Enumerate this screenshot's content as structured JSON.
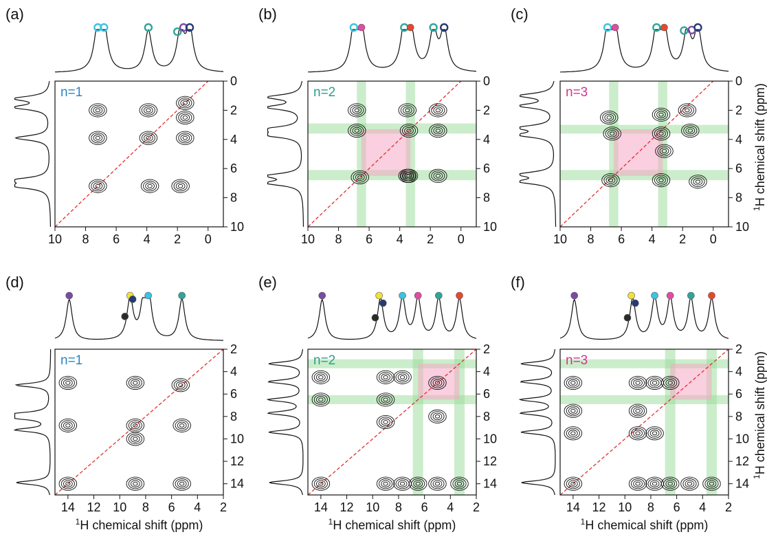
{
  "figure": {
    "x_axis_title_sup": "1",
    "x_axis_title": "H chemical shift (ppm)",
    "y_axis_title_sup": "1",
    "y_axis_title": "H chemical shift (ppm)"
  },
  "chart_data": [
    {
      "type": "contour",
      "panel": "(a)",
      "n_label": "n=1",
      "n_label_color": "#2a86c8",
      "x_range": [
        10,
        -1
      ],
      "y_range": [
        0,
        10
      ],
      "x_ticks": [
        "10",
        "8",
        "6",
        "4",
        "2",
        "0"
      ],
      "x_tick_values": [
        10,
        8,
        6,
        4,
        2,
        0
      ],
      "y_ticks": [
        "0",
        "2",
        "4",
        "6",
        "8",
        "10"
      ],
      "y_tick_values": [
        0,
        2,
        4,
        6,
        8,
        10
      ],
      "show_x_title": false,
      "show_y_title": false,
      "peaks": [
        7.2,
        6.8,
        3.9,
        1.8,
        1.2
      ],
      "markers": [
        {
          "x": 7.2,
          "color": "cyan",
          "type": "ring"
        },
        {
          "x": 6.8,
          "color": "cyan",
          "type": "ring"
        },
        {
          "x": 3.9,
          "color": "teal",
          "type": "ring"
        },
        {
          "x": 2.0,
          "color": "teal",
          "type": "ring"
        },
        {
          "x": 1.6,
          "color": "purple",
          "type": "ring"
        },
        {
          "x": 1.2,
          "color": "navy",
          "type": "ring"
        }
      ],
      "green_bands": [],
      "pink_box": null,
      "cross_peaks": [
        [
          7.2,
          2
        ],
        [
          3.9,
          3.9
        ],
        [
          7.2,
          7.2
        ],
        [
          3.8,
          7.2
        ],
        [
          1.8,
          7.2
        ],
        [
          1.5,
          1.5
        ],
        [
          1.5,
          3.9
        ],
        [
          7.2,
          3.9
        ],
        [
          1.5,
          2.5
        ],
        [
          3.9,
          2
        ]
      ]
    },
    {
      "type": "contour",
      "panel": "(b)",
      "n_label": "n=2",
      "n_label_color": "#2b9c8c",
      "x_range": [
        10,
        -1
      ],
      "y_range": [
        0,
        10
      ],
      "x_ticks": [
        "10",
        "8",
        "6",
        "4",
        "2",
        "0"
      ],
      "x_tick_values": [
        10,
        8,
        6,
        4,
        2,
        0
      ],
      "y_ticks": [
        "0",
        "2",
        "4",
        "6",
        "8",
        "10"
      ],
      "y_tick_values": [
        0,
        2,
        4,
        6,
        8,
        10
      ],
      "show_x_title": false,
      "show_y_title": false,
      "peaks": [
        7.0,
        6.5,
        3.7,
        3.3,
        1.8,
        1.1
      ],
      "markers": [
        {
          "x": 7.0,
          "color": "cyan",
          "type": "ring"
        },
        {
          "x": 6.5,
          "color": "pink",
          "type": "dot"
        },
        {
          "x": 3.7,
          "color": "teal",
          "type": "ring"
        },
        {
          "x": 3.3,
          "color": "red",
          "type": "dot"
        },
        {
          "x": 1.8,
          "color": "teal",
          "type": "ring"
        },
        {
          "x": 1.1,
          "color": "navy",
          "type": "ring"
        }
      ],
      "green_bands": [
        {
          "axis": "v",
          "from": 6.8,
          "to": 6.2
        },
        {
          "axis": "v",
          "from": 3.6,
          "to": 3.0
        },
        {
          "axis": "h",
          "from": 2.9,
          "to": 3.6
        },
        {
          "axis": "h",
          "from": 6.1,
          "to": 6.8
        }
      ],
      "pink_box": {
        "x1": 6.5,
        "x2": 3.3,
        "y1": 3.3,
        "y2": 6.5
      },
      "cross_peaks": [
        [
          6.8,
          2
        ],
        [
          3.5,
          2
        ],
        [
          1.5,
          2
        ],
        [
          6.8,
          3.4
        ],
        [
          3.4,
          3.4
        ],
        [
          1.5,
          3.4
        ],
        [
          6.6,
          6.6
        ],
        [
          3.4,
          6.5
        ],
        [
          1.5,
          6.5
        ],
        [
          3.5,
          6.5
        ]
      ]
    },
    {
      "type": "contour",
      "panel": "(c)",
      "n_label": "n=3",
      "n_label_color": "#d4338a",
      "x_range": [
        10,
        -1
      ],
      "y_range": [
        0,
        10
      ],
      "x_ticks": [
        "10",
        "8",
        "6",
        "4",
        "2",
        "0"
      ],
      "x_tick_values": [
        10,
        8,
        6,
        4,
        2,
        0
      ],
      "y_ticks": [
        "0",
        "2",
        "4",
        "6",
        "8",
        "10"
      ],
      "y_tick_values": [
        0,
        2,
        4,
        6,
        8,
        10
      ],
      "show_x_title": false,
      "show_y_title": true,
      "peaks": [
        6.9,
        6.4,
        3.7,
        3.2,
        1.7,
        1.0
      ],
      "markers": [
        {
          "x": 6.9,
          "color": "cyan",
          "type": "ring"
        },
        {
          "x": 6.4,
          "color": "pink",
          "type": "dot"
        },
        {
          "x": 3.7,
          "color": "teal",
          "type": "ring"
        },
        {
          "x": 3.2,
          "color": "red",
          "type": "dot"
        },
        {
          "x": 1.9,
          "color": "teal",
          "type": "ring"
        },
        {
          "x": 1.4,
          "color": "purple",
          "type": "ring"
        },
        {
          "x": 1.0,
          "color": "navy",
          "type": "ring"
        }
      ],
      "green_bands": [
        {
          "axis": "v",
          "from": 6.8,
          "to": 6.2
        },
        {
          "axis": "v",
          "from": 3.6,
          "to": 3.0
        },
        {
          "axis": "h",
          "from": 3.0,
          "to": 3.6
        },
        {
          "axis": "h",
          "from": 6.1,
          "to": 6.8
        }
      ],
      "pink_box": {
        "x1": 6.5,
        "x2": 3.3,
        "y1": 3.3,
        "y2": 6.5
      },
      "cross_peaks": [
        [
          6.8,
          2.5
        ],
        [
          3.4,
          2.3
        ],
        [
          1.7,
          2.0
        ],
        [
          6.6,
          3.6
        ],
        [
          3.4,
          3.6
        ],
        [
          1.5,
          3.4
        ],
        [
          6.7,
          6.8
        ],
        [
          3.4,
          6.8
        ],
        [
          1.0,
          6.9
        ],
        [
          3.2,
          4.8
        ]
      ]
    },
    {
      "type": "contour",
      "panel": "(d)",
      "n_label": "n=1",
      "n_label_color": "#2a86c8",
      "x_range": [
        15,
        2
      ],
      "y_range": [
        2,
        15
      ],
      "x_ticks": [
        "14",
        "12",
        "10",
        "8",
        "6",
        "4",
        "2"
      ],
      "x_tick_values": [
        14,
        12,
        10,
        8,
        6,
        4,
        2
      ],
      "y_ticks": [
        "2",
        "4",
        "6",
        "8",
        "10",
        "12",
        "14"
      ],
      "y_tick_values": [
        2,
        4,
        6,
        8,
        10,
        12,
        14
      ],
      "show_x_title": true,
      "show_y_title": false,
      "peaks": [
        13.9,
        9.2,
        8.1,
        7.8,
        5.2
      ],
      "markers": [
        {
          "x": 13.9,
          "color": "purple",
          "type": "dot"
        },
        {
          "x": 9.2,
          "color": "yellow",
          "type": "dot"
        },
        {
          "x": 9.6,
          "color": "black",
          "type": "dot"
        },
        {
          "x": 9.0,
          "color": "navy",
          "type": "dot"
        },
        {
          "x": 7.8,
          "color": "cyan",
          "type": "dot"
        },
        {
          "x": 5.2,
          "color": "teal",
          "type": "dot"
        }
      ],
      "green_bands": [],
      "pink_box": null,
      "cross_peaks": [
        [
          14,
          5
        ],
        [
          14,
          8.8
        ],
        [
          14,
          14
        ],
        [
          8.8,
          5
        ],
        [
          5.3,
          5.2
        ],
        [
          8.8,
          8.8
        ],
        [
          5.2,
          8.8
        ],
        [
          8.8,
          14
        ],
        [
          5.2,
          14
        ],
        [
          8.8,
          10
        ]
      ]
    },
    {
      "type": "contour",
      "panel": "(e)",
      "n_label": "n=2",
      "n_label_color": "#2b9c8c",
      "x_range": [
        15,
        2
      ],
      "y_range": [
        2,
        15
      ],
      "x_ticks": [
        "14",
        "12",
        "10",
        "8",
        "6",
        "4",
        "2"
      ],
      "x_tick_values": [
        14,
        12,
        10,
        8,
        6,
        4,
        2
      ],
      "y_ticks": [
        "2",
        "4",
        "6",
        "8",
        "10",
        "12",
        "14"
      ],
      "y_tick_values": [
        2,
        4,
        6,
        8,
        10,
        12,
        14
      ],
      "show_x_title": true,
      "show_y_title": false,
      "peaks": [
        13.9,
        9.4,
        7.7,
        6.5,
        4.9,
        3.3
      ],
      "markers": [
        {
          "x": 13.9,
          "color": "purple",
          "type": "dot"
        },
        {
          "x": 9.5,
          "color": "yellow",
          "type": "dot"
        },
        {
          "x": 9.8,
          "color": "black",
          "type": "dot"
        },
        {
          "x": 9.2,
          "color": "navy",
          "type": "dot"
        },
        {
          "x": 7.7,
          "color": "cyan",
          "type": "dot"
        },
        {
          "x": 6.5,
          "color": "pink",
          "type": "dot"
        },
        {
          "x": 4.9,
          "color": "teal",
          "type": "dot"
        },
        {
          "x": 3.3,
          "color": "red",
          "type": "dot"
        }
      ],
      "green_bands": [
        {
          "axis": "v",
          "from": 6.9,
          "to": 6.1
        },
        {
          "axis": "v",
          "from": 3.7,
          "to": 2.9
        },
        {
          "axis": "h",
          "from": 2.9,
          "to": 3.7
        },
        {
          "axis": "h",
          "from": 6.1,
          "to": 6.9
        }
      ],
      "pink_box": {
        "x1": 6.5,
        "x2": 3.3,
        "y1": 3.3,
        "y2": 6.5
      },
      "cross_peaks": [
        [
          14,
          4.5
        ],
        [
          9,
          4.5
        ],
        [
          7.7,
          4.5
        ],
        [
          5,
          5
        ],
        [
          9,
          6.5
        ],
        [
          14,
          6.5
        ],
        [
          9,
          8.5
        ],
        [
          5,
          8
        ],
        [
          14,
          14
        ],
        [
          9,
          14
        ],
        [
          7.7,
          14
        ],
        [
          6.5,
          14
        ],
        [
          5,
          14
        ],
        [
          3.3,
          14
        ]
      ]
    },
    {
      "type": "contour",
      "panel": "(f)",
      "n_label": "n=3",
      "n_label_color": "#d4338a",
      "x_range": [
        15,
        2
      ],
      "y_range": [
        2,
        15
      ],
      "x_ticks": [
        "14",
        "12",
        "10",
        "8",
        "6",
        "4",
        "2"
      ],
      "x_tick_values": [
        14,
        12,
        10,
        8,
        6,
        4,
        2
      ],
      "y_ticks": [
        "2",
        "4",
        "6",
        "8",
        "10",
        "12",
        "14"
      ],
      "y_tick_values": [
        2,
        4,
        6,
        8,
        10,
        12,
        14
      ],
      "show_x_title": true,
      "show_y_title": true,
      "peaks": [
        13.9,
        9.4,
        7.7,
        6.5,
        4.9,
        3.3
      ],
      "markers": [
        {
          "x": 13.9,
          "color": "purple",
          "type": "dot"
        },
        {
          "x": 9.5,
          "color": "yellow",
          "type": "dot"
        },
        {
          "x": 9.8,
          "color": "black",
          "type": "dot"
        },
        {
          "x": 9.2,
          "color": "navy",
          "type": "dot"
        },
        {
          "x": 7.7,
          "color": "cyan",
          "type": "dot"
        },
        {
          "x": 6.5,
          "color": "pink",
          "type": "dot"
        },
        {
          "x": 4.9,
          "color": "teal",
          "type": "dot"
        },
        {
          "x": 3.3,
          "color": "red",
          "type": "dot"
        }
      ],
      "green_bands": [
        {
          "axis": "v",
          "from": 6.9,
          "to": 6.1
        },
        {
          "axis": "v",
          "from": 3.7,
          "to": 2.9
        },
        {
          "axis": "h",
          "from": 2.9,
          "to": 3.7
        },
        {
          "axis": "h",
          "from": 6.1,
          "to": 6.9
        }
      ],
      "pink_box": {
        "x1": 6.5,
        "x2": 3.3,
        "y1": 3.3,
        "y2": 6.5
      },
      "cross_peaks": [
        [
          14,
          5
        ],
        [
          9,
          5
        ],
        [
          7.7,
          5
        ],
        [
          6.5,
          5
        ],
        [
          14,
          7.5
        ],
        [
          9,
          7.5
        ],
        [
          14,
          9.5
        ],
        [
          9,
          9.5
        ],
        [
          7.7,
          9.5
        ],
        [
          14,
          14
        ],
        [
          9,
          14
        ],
        [
          7.7,
          14
        ],
        [
          6.5,
          14
        ],
        [
          5,
          14
        ],
        [
          3.3,
          14
        ]
      ]
    }
  ],
  "colors": {
    "cyan": "#3cc3e3",
    "teal": "#2fa59a",
    "purple": "#7b4aa6",
    "navy": "#263a74",
    "pink": "#e44ba3",
    "red": "#e8472f",
    "yellow": "#f2e03c",
    "black": "#2b2b2b",
    "green_band": "#98dc98",
    "pink_box": "#f6a8c4",
    "diagonal": "#e03030",
    "contour": "#111111"
  }
}
